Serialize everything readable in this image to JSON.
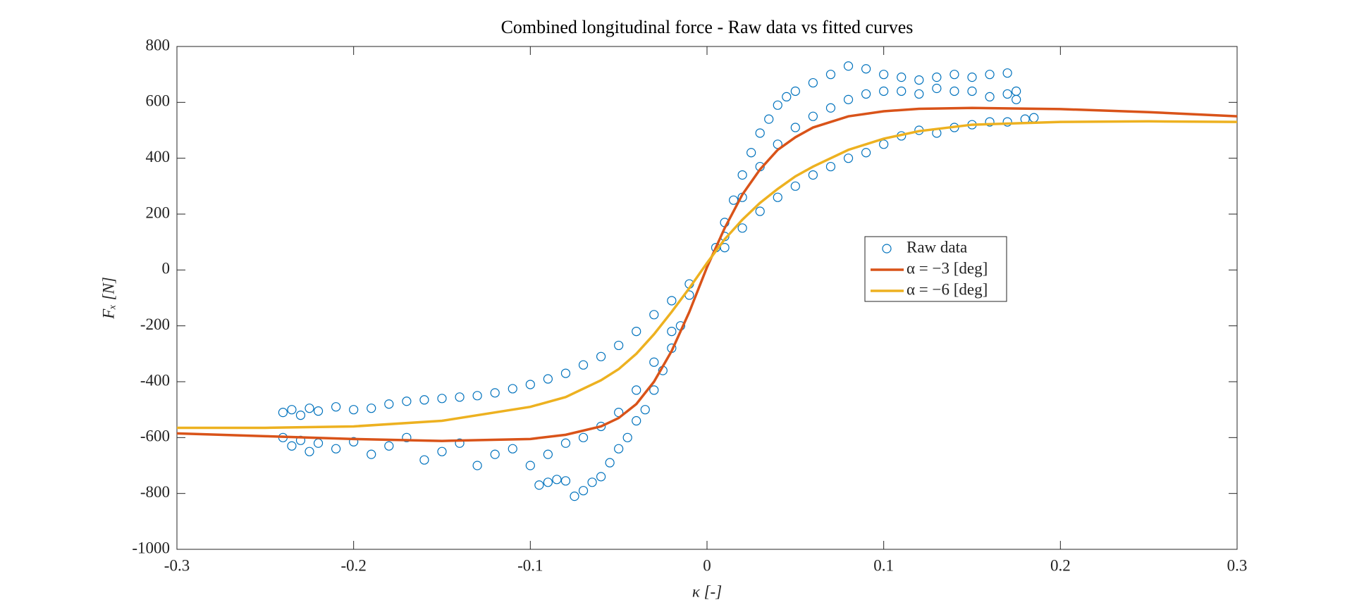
{
  "chart_data": {
    "type": "scatter",
    "title": "Combined longitudinal force - Raw data vs fitted curves",
    "x_label": "κ [-]",
    "y_label": "Fₓ [N]",
    "xlim": [
      -0.3,
      0.3
    ],
    "xticks": [
      -0.3,
      -0.2,
      -0.1,
      0,
      0.1,
      0.2,
      0.3
    ],
    "ylim": [
      -1000,
      800
    ],
    "yticks": [
      -1000,
      -800,
      -600,
      -400,
      -200,
      0,
      200,
      400,
      600,
      800
    ],
    "series": [
      {
        "name": "Raw data",
        "color": "#0072BD",
        "mode": "markers",
        "x": [
          -0.24,
          -0.235,
          -0.23,
          -0.225,
          -0.22,
          -0.21,
          -0.2,
          -0.19,
          -0.18,
          -0.17,
          -0.16,
          -0.15,
          -0.14,
          -0.13,
          -0.12,
          -0.11,
          -0.1,
          -0.09,
          -0.08,
          -0.07,
          -0.06,
          -0.05,
          -0.04,
          -0.03,
          -0.02,
          -0.01,
          -0.24,
          -0.235,
          -0.23,
          -0.225,
          -0.22,
          -0.21,
          -0.2,
          -0.19,
          -0.18,
          -0.17,
          -0.16,
          -0.15,
          -0.14,
          -0.13,
          -0.12,
          -0.11,
          -0.1,
          -0.09,
          -0.08,
          -0.07,
          -0.06,
          -0.05,
          -0.04,
          -0.03,
          -0.02,
          -0.01,
          -0.095,
          -0.09,
          -0.085,
          -0.08,
          -0.075,
          -0.07,
          -0.065,
          -0.06,
          -0.055,
          -0.05,
          -0.045,
          -0.04,
          -0.035,
          -0.03,
          -0.025,
          -0.02,
          -0.015,
          0.005,
          0.01,
          0.015,
          0.02,
          0.025,
          0.03,
          0.035,
          0.04,
          0.045,
          0.05,
          0.06,
          0.07,
          0.08,
          0.09,
          0.1,
          0.11,
          0.12,
          0.13,
          0.14,
          0.15,
          0.16,
          0.17,
          0.175,
          0.01,
          0.02,
          0.03,
          0.04,
          0.05,
          0.06,
          0.07,
          0.08,
          0.09,
          0.1,
          0.11,
          0.12,
          0.13,
          0.14,
          0.15,
          0.16,
          0.17,
          0.175,
          0.01,
          0.02,
          0.03,
          0.04,
          0.05,
          0.06,
          0.07,
          0.08,
          0.09,
          0.1,
          0.11,
          0.12,
          0.13,
          0.14,
          0.15,
          0.16,
          0.17,
          0.18,
          0.185
        ],
        "values": [
          -510,
          -500,
          -520,
          -495,
          -505,
          -490,
          -500,
          -495,
          -480,
          -470,
          -465,
          -460,
          -455,
          -450,
          -440,
          -425,
          -410,
          -390,
          -370,
          -340,
          -310,
          -270,
          -220,
          -160,
          -110,
          -50,
          -600,
          -630,
          -610,
          -650,
          -620,
          -640,
          -615,
          -660,
          -630,
          -600,
          -680,
          -650,
          -620,
          -700,
          -660,
          -640,
          -700,
          -660,
          -620,
          -600,
          -560,
          -510,
          -430,
          -330,
          -220,
          -90,
          -770,
          -760,
          -750,
          -755,
          -810,
          -790,
          -760,
          -740,
          -690,
          -640,
          -600,
          -540,
          -500,
          -430,
          -360,
          -280,
          -200,
          80,
          170,
          250,
          340,
          420,
          490,
          540,
          590,
          620,
          640,
          670,
          700,
          730,
          720,
          700,
          690,
          680,
          690,
          700,
          690,
          700,
          705,
          640,
          120,
          260,
          370,
          450,
          510,
          550,
          580,
          610,
          630,
          640,
          640,
          630,
          650,
          640,
          640,
          620,
          630,
          610,
          80,
          150,
          210,
          260,
          300,
          340,
          370,
          400,
          420,
          450,
          480,
          500,
          490,
          510,
          520,
          530,
          530,
          540,
          545
        ]
      },
      {
        "name": "α = −3 [deg]",
        "color": "#D95319",
        "mode": "line",
        "x": [
          -0.3,
          -0.25,
          -0.2,
          -0.15,
          -0.1,
          -0.08,
          -0.06,
          -0.05,
          -0.04,
          -0.03,
          -0.02,
          -0.01,
          0,
          0.01,
          0.02,
          0.03,
          0.04,
          0.05,
          0.06,
          0.08,
          0.1,
          0.12,
          0.15,
          0.2,
          0.25,
          0.3
        ],
        "values": [
          -585,
          -595,
          -605,
          -612,
          -605,
          -590,
          -560,
          -530,
          -480,
          -400,
          -290,
          -150,
          10,
          150,
          270,
          360,
          430,
          475,
          510,
          550,
          568,
          577,
          580,
          576,
          565,
          550
        ]
      },
      {
        "name": "α = −6 [deg]",
        "color": "#EDB120",
        "mode": "line",
        "x": [
          -0.3,
          -0.25,
          -0.2,
          -0.15,
          -0.1,
          -0.08,
          -0.06,
          -0.05,
          -0.04,
          -0.03,
          -0.02,
          -0.01,
          0,
          0.01,
          0.02,
          0.03,
          0.04,
          0.05,
          0.06,
          0.08,
          0.1,
          0.12,
          0.15,
          0.2,
          0.25,
          0.3
        ],
        "values": [
          -565,
          -565,
          -560,
          -540,
          -490,
          -455,
          -395,
          -355,
          -300,
          -230,
          -150,
          -65,
          25,
          110,
          180,
          240,
          290,
          335,
          370,
          430,
          470,
          497,
          520,
          530,
          532,
          530
        ]
      }
    ]
  }
}
